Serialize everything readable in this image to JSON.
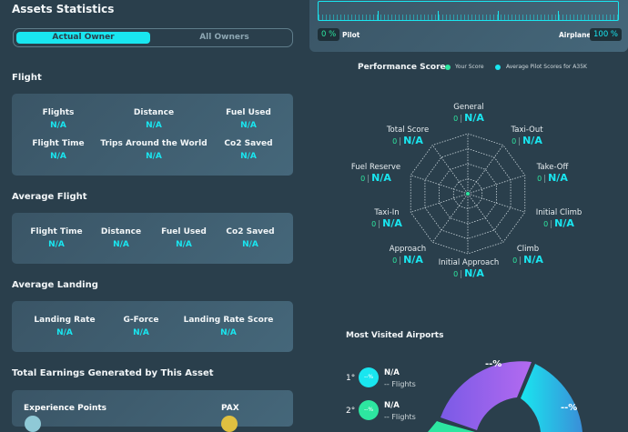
{
  "header": {
    "title": "Assets Statistics"
  },
  "owner_toggle": {
    "active": "Actual Owner",
    "inactive": "All Owners"
  },
  "split": {
    "pilot_value": "0 %",
    "pilot_label": "Pilot",
    "airplane_label": "Airplane",
    "airplane_value": "100 %",
    "pilot_fraction": 0
  },
  "flight": {
    "title": "Flight",
    "items": [
      {
        "label": "Flights",
        "value": "N/A"
      },
      {
        "label": "Distance",
        "value": "N/A"
      },
      {
        "label": "Fuel Used",
        "value": "N/A"
      },
      {
        "label": "Flight Time",
        "value": "N/A"
      },
      {
        "label": "Trips Around the World",
        "value": "N/A"
      },
      {
        "label": "Co2 Saved",
        "value": "N/A"
      }
    ]
  },
  "average_flight": {
    "title": "Average Flight",
    "items": [
      {
        "label": "Flight Time",
        "value": "N/A"
      },
      {
        "label": "Distance",
        "value": "N/A"
      },
      {
        "label": "Fuel Used",
        "value": "N/A"
      },
      {
        "label": "Co2 Saved",
        "value": "N/A"
      }
    ]
  },
  "average_landing": {
    "title": "Average Landing",
    "items": [
      {
        "label": "Landing Rate",
        "value": "N/A"
      },
      {
        "label": "G-Force",
        "value": "N/A"
      },
      {
        "label": "Landing Rate Score",
        "value": "N/A"
      }
    ]
  },
  "earnings": {
    "title": "Total Earnings Generated by This Asset",
    "xp_label": "Experience Points",
    "pax_label": "PAX"
  },
  "performance": {
    "title": "Performance Score",
    "legend": [
      {
        "label": "Your Score",
        "color": "#2de6a0"
      },
      {
        "label": "Average Pilot Scores for A35K",
        "color": "#19e6f0"
      }
    ],
    "axes": [
      {
        "label": "General",
        "score": "0",
        "avg": "N/A"
      },
      {
        "label": "Taxi-Out",
        "score": "0",
        "avg": "N/A"
      },
      {
        "label": "Take-Off",
        "score": "0",
        "avg": "N/A"
      },
      {
        "label": "Initial Climb",
        "score": "0",
        "avg": "N/A"
      },
      {
        "label": "Climb",
        "score": "0",
        "avg": "N/A"
      },
      {
        "label": "Initial Approach",
        "score": "0",
        "avg": "N/A"
      },
      {
        "label": "Approach",
        "score": "0",
        "avg": "N/A"
      },
      {
        "label": "Taxi-In",
        "score": "0",
        "avg": "N/A"
      },
      {
        "label": "Fuel Reserve",
        "score": "0",
        "avg": "N/A"
      },
      {
        "label": "Total Score",
        "score": "0",
        "avg": "N/A"
      }
    ],
    "separator": "|"
  },
  "airports": {
    "title": "Most Visited Airports",
    "items": [
      {
        "rank": "1°",
        "pct": "--%",
        "name": "N/A",
        "flights": "-- Flights",
        "color": "#19e6f0"
      },
      {
        "rank": "2°",
        "pct": "--%",
        "name": "N/A",
        "flights": "-- Flights",
        "color": "#2de6a0"
      }
    ],
    "donut_labels": [
      "--%",
      "--%"
    ]
  }
}
